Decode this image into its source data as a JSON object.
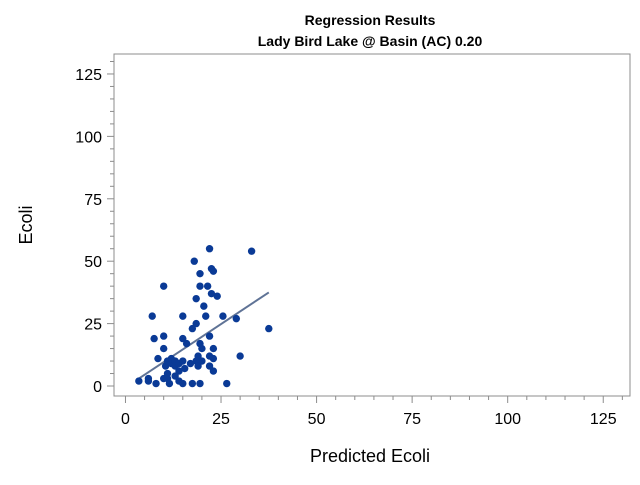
{
  "chart_data": {
    "type": "scatter",
    "title": "Regression Results",
    "subtitle": "Lady Bird Lake @ Basin (AC) 0.20",
    "xlabel": "Predicted Ecoli",
    "ylabel": "Ecoli",
    "xlim": [
      -3,
      132
    ],
    "ylim": [
      -4,
      133
    ],
    "x_ticks": [
      "0",
      "25",
      "50",
      "75",
      "100",
      "125"
    ],
    "y_ticks": [
      "0",
      "25",
      "50",
      "75",
      "100",
      "125"
    ],
    "grid": false,
    "legend": "none",
    "colors": {
      "points": "#0a3a96",
      "fit_line": "#5f7396",
      "frame": "#8c8c8c"
    },
    "points": [
      {
        "x": 3.5,
        "y": 2
      },
      {
        "x": 6,
        "y": 2
      },
      {
        "x": 6,
        "y": 3
      },
      {
        "x": 7,
        "y": 28
      },
      {
        "x": 7.5,
        "y": 19
      },
      {
        "x": 8,
        "y": 1
      },
      {
        "x": 8.5,
        "y": 11
      },
      {
        "x": 10,
        "y": 40
      },
      {
        "x": 10,
        "y": 20
      },
      {
        "x": 10,
        "y": 15
      },
      {
        "x": 10,
        "y": 3
      },
      {
        "x": 10.5,
        "y": 8
      },
      {
        "x": 11,
        "y": 10
      },
      {
        "x": 11,
        "y": 5
      },
      {
        "x": 11,
        "y": 3
      },
      {
        "x": 11.5,
        "y": 1
      },
      {
        "x": 12,
        "y": 9
      },
      {
        "x": 12,
        "y": 11
      },
      {
        "x": 13,
        "y": 10
      },
      {
        "x": 13,
        "y": 4
      },
      {
        "x": 13,
        "y": 8
      },
      {
        "x": 14,
        "y": 9
      },
      {
        "x": 14,
        "y": 6
      },
      {
        "x": 14,
        "y": 2
      },
      {
        "x": 15,
        "y": 28
      },
      {
        "x": 15,
        "y": 19
      },
      {
        "x": 15,
        "y": 10
      },
      {
        "x": 15,
        "y": 1
      },
      {
        "x": 15.5,
        "y": 7
      },
      {
        "x": 16,
        "y": 17
      },
      {
        "x": 17,
        "y": 9
      },
      {
        "x": 17.5,
        "y": 23
      },
      {
        "x": 17.5,
        "y": 1
      },
      {
        "x": 18,
        "y": 50
      },
      {
        "x": 18.5,
        "y": 35
      },
      {
        "x": 18.5,
        "y": 25
      },
      {
        "x": 18.5,
        "y": 10
      },
      {
        "x": 19,
        "y": 12
      },
      {
        "x": 19,
        "y": 8
      },
      {
        "x": 19.5,
        "y": 45
      },
      {
        "x": 19.5,
        "y": 40
      },
      {
        "x": 19.5,
        "y": 17
      },
      {
        "x": 19.5,
        "y": 1
      },
      {
        "x": 20,
        "y": 15
      },
      {
        "x": 20,
        "y": 10
      },
      {
        "x": 20.5,
        "y": 32
      },
      {
        "x": 21,
        "y": 28
      },
      {
        "x": 21.5,
        "y": 40
      },
      {
        "x": 22,
        "y": 55
      },
      {
        "x": 22,
        "y": 20
      },
      {
        "x": 22,
        "y": 12
      },
      {
        "x": 22,
        "y": 8
      },
      {
        "x": 22.5,
        "y": 47
      },
      {
        "x": 22.5,
        "y": 37
      },
      {
        "x": 23,
        "y": 46
      },
      {
        "x": 23,
        "y": 15
      },
      {
        "x": 23,
        "y": 11
      },
      {
        "x": 23,
        "y": 6
      },
      {
        "x": 24,
        "y": 36
      },
      {
        "x": 25.5,
        "y": 28
      },
      {
        "x": 26.5,
        "y": 1
      },
      {
        "x": 29,
        "y": 27
      },
      {
        "x": 30,
        "y": 12
      },
      {
        "x": 33,
        "y": 54
      },
      {
        "x": 37.5,
        "y": 23
      }
    ],
    "fit_line": {
      "x": [
        3,
        37.5
      ],
      "y": [
        2.5,
        37.5
      ]
    }
  }
}
